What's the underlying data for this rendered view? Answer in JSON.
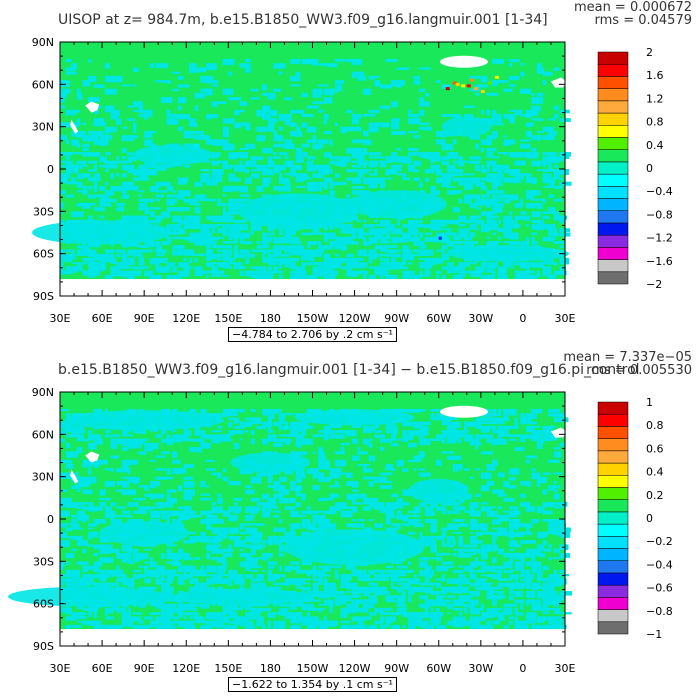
{
  "colors": {
    "ocean_low": "#18e85a",
    "ocean_alt": "#00e5e5",
    "land": "#ffffff",
    "cmap": [
      "#6e6e6e",
      "#c8c8c8",
      "#f000d0",
      "#8a2be2",
      "#0018f0",
      "#1e78f0",
      "#00b4ff",
      "#00e0ff",
      "#00ffff",
      "#00f0c8",
      "#18e85a",
      "#50f000",
      "#ffff00",
      "#ffd200",
      "#ffaa3c",
      "#ff8c1e",
      "#ff5000",
      "#ff0000",
      "#c80000"
    ]
  },
  "chart_data": [
    {
      "type": "heatmap",
      "title": "UISOP at z= 984.7m, b.e15.B1850_WW3.f09_g16.langmuir.001 [1-34]",
      "stats": {
        "mean": "mean = 0.000672",
        "rms": "rms = 0.04579"
      },
      "xticks": [
        "30E",
        "60E",
        "90E",
        "120E",
        "150E",
        "180",
        "150W",
        "120W",
        "90W",
        "60W",
        "30W",
        "0",
        "30E"
      ],
      "yticks": [
        "90N",
        "60N",
        "30N",
        "0",
        "30S",
        "60S",
        "90S"
      ],
      "range_label": "−4.784 to 2.706 by .2 cm s⁻¹",
      "colorbar": {
        "labels": [
          "2",
          "1.6",
          "1.2",
          "0.8",
          "0.4",
          "0",
          "−0.4",
          "−0.8",
          "−1.2",
          "−1.6",
          "−2"
        ],
        "min": -2,
        "max": 2
      },
      "dominant": "0 (green), scattered −0.2 to 0 (cyan)",
      "hotspot": "positive values up to ~1.6 near 60N, 30W–60W (Labrador/North Atlantic)"
    },
    {
      "type": "heatmap",
      "title": "b.e15.B1850_WW3.f09_g16.langmuir.001 [1-34] − b.e15.B1850.f09_g16.pi_control",
      "stats": {
        "mean": "mean = 7.337e−05",
        "rms": "rms = 0.005530"
      },
      "xticks": [
        "30E",
        "60E",
        "90E",
        "120E",
        "150E",
        "180",
        "150W",
        "120W",
        "90W",
        "60W",
        "30W",
        "0",
        "30E"
      ],
      "yticks": [
        "90N",
        "60N",
        "30N",
        "0",
        "30S",
        "60S",
        "90S"
      ],
      "range_label": "−1.622 to 1.354 by .1 cm s⁻¹",
      "colorbar": {
        "labels": [
          "1",
          "0.8",
          "0.6",
          "0.4",
          "0.2",
          "0",
          "−0.2",
          "−0.4",
          "−0.6",
          "−0.8",
          "−1"
        ],
        "min": -1,
        "max": 1
      },
      "dominant": "0 (green), scattered −0.1 to 0 (cyan)"
    }
  ]
}
